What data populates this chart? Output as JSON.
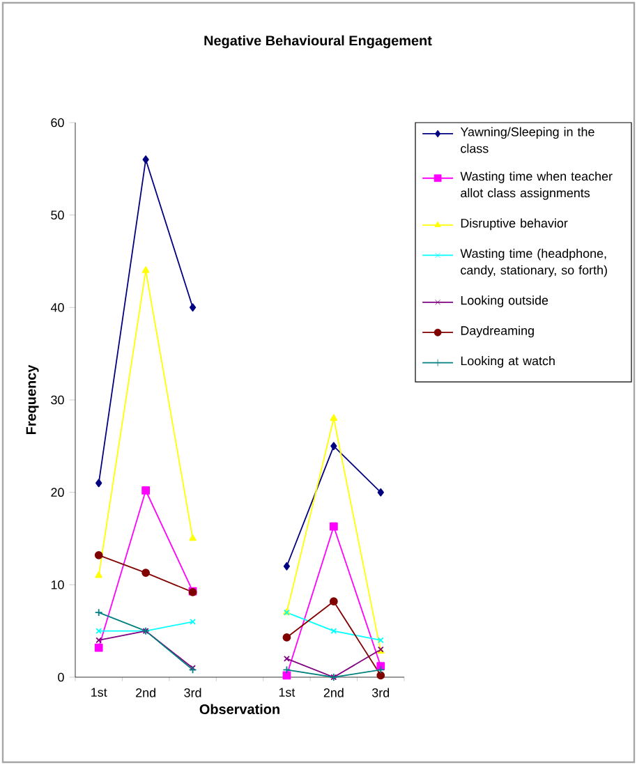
{
  "chart_data": {
    "type": "line",
    "title": "Negative Behavioural Engagement",
    "xlabel": "Observation",
    "ylabel": "Frequency",
    "categories": [
      "1st",
      "2nd",
      "3rd",
      null,
      "1st",
      "2nd",
      "3rd"
    ],
    "ylim": [
      0,
      60
    ],
    "yticks": [
      0,
      10,
      20,
      30,
      40,
      50,
      60
    ],
    "legend": "right",
    "line_style": "solid",
    "series": [
      {
        "name": "Yawning/Sleeping in the class",
        "color": "#000080",
        "marker": "diamond",
        "values": [
          21,
          56,
          40,
          null,
          12,
          25,
          20
        ]
      },
      {
        "name": "Wasting time when teacher allot class assignments",
        "color": "#ff00ff",
        "marker": "square",
        "values": [
          3.2,
          20.2,
          9.3,
          null,
          0.2,
          16.3,
          1.2
        ]
      },
      {
        "name": "Disruptive behavior",
        "color": "#ffff00",
        "marker": "triangle",
        "values": [
          11,
          44,
          15,
          null,
          7,
          28,
          2.8
        ]
      },
      {
        "name": "Wasting time (headphone, candy, stationary, so forth)",
        "color": "#00ffff",
        "marker": "cross",
        "values": [
          5,
          5,
          6,
          null,
          7,
          5,
          4
        ]
      },
      {
        "name": "Looking outside",
        "color": "#800080",
        "marker": "cross",
        "values": [
          4,
          5,
          1,
          null,
          2,
          0,
          3
        ]
      },
      {
        "name": "Daydreaming",
        "color": "#800000",
        "marker": "circle",
        "values": [
          13.2,
          11.3,
          9.2,
          null,
          4.3,
          8.2,
          0.2
        ]
      },
      {
        "name": "Looking at watch",
        "color": "#008080",
        "marker": "plus",
        "values": [
          7,
          5,
          0.8,
          null,
          0.8,
          0,
          0.8
        ]
      }
    ]
  }
}
